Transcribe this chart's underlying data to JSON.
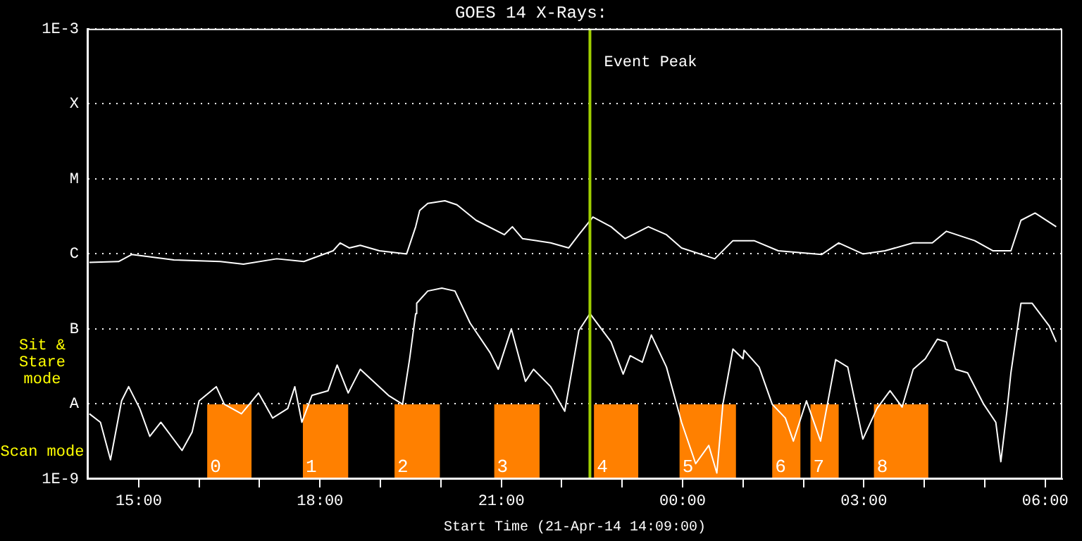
{
  "chart_data": {
    "type": "line",
    "title": "GOES 14 X-Rays:",
    "xlabel": "Start Time (21-Apr-14 14:09:00)",
    "log": "y",
    "grid": "y",
    "legend": false,
    "marker": "none",
    "line_style": "solid",
    "xlim": [
      "--04-21T14:09",
      "--04-22T06:17"
    ],
    "xticks": [
      {
        "value": "--04-21T15:00",
        "label": "15:00"
      },
      {
        "value": "--04-21T16:00",
        "label": null
      },
      {
        "value": "--04-21T17:00",
        "label": null
      },
      {
        "value": "--04-21T18:00",
        "label": "18:00"
      },
      {
        "value": "--04-21T19:00",
        "label": null
      },
      {
        "value": "--04-21T20:00",
        "label": null
      },
      {
        "value": "--04-21T21:00",
        "label": "21:00"
      },
      {
        "value": "--04-21T22:00",
        "label": null
      },
      {
        "value": "--04-21T23:00",
        "label": null
      },
      {
        "value": "--04-22T00:00",
        "label": "00:00"
      },
      {
        "value": "--04-22T01:00",
        "label": null
      },
      {
        "value": "--04-22T02:00",
        "label": null
      },
      {
        "value": "--04-22T03:00",
        "label": "03:00"
      },
      {
        "value": "--04-22T04:00",
        "label": null
      },
      {
        "value": "--04-22T05:00",
        "label": null
      },
      {
        "value": "--04-22T06:00",
        "label": "06:00"
      }
    ],
    "ylim": [
      1e-09,
      0.001
    ],
    "yticks": [
      {
        "value": 1e-09,
        "label": "1E-9"
      },
      {
        "value": 1e-08,
        "label": "A"
      },
      {
        "value": 1e-07,
        "label": "B"
      },
      {
        "value": 1e-06,
        "label": "C"
      },
      {
        "value": 1e-05,
        "label": "M"
      },
      {
        "value": 0.0001,
        "label": "X"
      },
      {
        "value": 0.001,
        "label": "1E-3"
      }
    ],
    "series": [
      {
        "color": "#ffffff",
        "x": [
          "--04-21T14:11",
          "--04-21T14:40",
          "--04-21T14:53",
          "--04-21T15:35",
          "--04-21T16:21",
          "--04-21T16:44",
          "--04-21T17:17",
          "--04-21T17:44",
          "--04-21T18:13",
          "--04-21T18:20",
          "--04-21T18:29",
          "--04-21T18:40",
          "--04-21T18:59",
          "--04-21T19:26",
          "--04-21T19:35",
          "--04-21T19:39",
          "--04-21T19:47",
          "--04-21T20:04",
          "--04-21T20:16",
          "--04-21T20:35",
          "--04-21T21:03",
          "--04-21T21:11",
          "--04-21T21:21",
          "--04-21T21:49",
          "--04-21T22:07",
          "--04-21T22:17",
          "--04-21T22:31",
          "--04-21T22:49",
          "--04-21T23:03",
          "--04-21T23:26",
          "--04-21T23:44",
          "--04-21T23:59",
          "--04-22T00:32",
          "--04-22T00:50",
          "--04-22T00:57",
          "--04-22T01:11",
          "--04-22T01:35",
          "--04-22T02:18",
          "--04-22T02:35",
          "--04-22T02:59",
          "--04-22T03:21",
          "--04-22T03:49",
          "--04-22T04:08",
          "--04-22T04:22",
          "--04-22T04:50",
          "--04-22T05:08",
          "--04-22T05:26",
          "--04-22T05:36",
          "--04-22T05:50",
          "--04-22T06:11"
        ],
        "values": [
          7.7e-07,
          7.9e-07,
          9.8e-07,
          8.3e-07,
          7.9e-07,
          7.3e-07,
          8.6e-07,
          7.9e-07,
          1.1e-06,
          1.4e-06,
          1.2e-06,
          1.3e-06,
          1.1e-06,
          1e-06,
          2.3e-06,
          3.8e-06,
          4.7e-06,
          5.1e-06,
          4.5e-06,
          2.8e-06,
          1.8e-06,
          2.3e-06,
          1.6e-06,
          1.4e-06,
          1.2e-06,
          1.8e-06,
          3.1e-06,
          2.3e-06,
          1.6e-06,
          2.3e-06,
          1.8e-06,
          1.2e-06,
          8.6e-07,
          1.5e-06,
          1.5e-06,
          1.5e-06,
          1.1e-06,
          9.8e-07,
          1.4e-06,
          1e-06,
          1.1e-06,
          1.4e-06,
          1.4e-06,
          2e-06,
          1.5e-06,
          1.1e-06,
          1.1e-06,
          2.8e-06,
          3.5e-06,
          2.3e-06
        ]
      },
      {
        "color": "#ffffff",
        "x": [
          "--04-21T14:11",
          "--04-21T14:22",
          "--04-21T14:32",
          "--04-21T14:43",
          "--04-21T14:50",
          "--04-21T15:01",
          "--04-21T15:11",
          "--04-21T15:22",
          "--04-21T15:43",
          "--04-21T15:53",
          "--04-21T16:00",
          "--04-21T16:17",
          "--04-21T16:25",
          "--04-21T16:42",
          "--04-21T16:59",
          "--04-21T17:13",
          "--04-21T17:28",
          "--04-21T17:35",
          "--04-21T17:42",
          "--04-21T17:52",
          "--04-21T18:08",
          "--04-21T18:17",
          "--04-21T18:28",
          "--04-21T18:40",
          "--04-21T19:08",
          "--04-21T19:22",
          "--04-21T19:29",
          "--04-21T19:35",
          "--04-21T19:36",
          "--04-21T19:47",
          "--04-21T20:01",
          "--04-21T20:14",
          "--04-21T20:29",
          "--04-21T20:49",
          "--04-21T20:57",
          "--04-21T21:10",
          "--04-21T21:24",
          "--04-21T21:32",
          "--04-21T21:49",
          "--04-21T22:03",
          "--04-21T22:17",
          "--04-21T22:28",
          "--04-21T22:49",
          "--04-21T23:01",
          "--04-21T23:08",
          "--04-21T23:20",
          "--04-21T23:29",
          "--04-21T23:44",
          "--04-21T23:59",
          "--04-22T00:13",
          "--04-22T00:26",
          "--04-22T00:34",
          "--04-22T00:40",
          "--04-22T00:50",
          "--04-22T01:00",
          "--04-22T01:01",
          "--04-22T01:16",
          "--04-22T01:29",
          "--04-22T01:42",
          "--04-22T01:50",
          "--04-22T02:03",
          "--04-22T02:17",
          "--04-22T02:32",
          "--04-22T02:44",
          "--04-22T02:59",
          "--04-22T03:13",
          "--04-22T03:26",
          "--04-22T03:38",
          "--04-22T03:49",
          "--04-22T04:01",
          "--04-22T04:13",
          "--04-22T04:22",
          "--04-22T04:31",
          "--04-22T04:43",
          "--04-22T04:59",
          "--04-22T05:11",
          "--04-22T05:16",
          "--04-22T05:22",
          "--04-22T05:26",
          "--04-22T05:36",
          "--04-22T05:47",
          "--04-22T06:04",
          "--04-22T06:11"
        ],
        "values": [
          7.4e-09,
          5.7e-09,
          1.8e-09,
          1.1e-08,
          1.7e-08,
          8.7e-09,
          3.7e-09,
          5.7e-09,
          2.4e-09,
          4.2e-09,
          1.1e-08,
          1.7e-08,
          9.9e-09,
          7.4e-09,
          1.4e-08,
          6.5e-09,
          8.7e-09,
          1.7e-08,
          5.7e-09,
          1.3e-08,
          1.5e-08,
          3.3e-08,
          1.4e-08,
          2.9e-08,
          1.3e-08,
          9.9e-09,
          4e-08,
          1.6e-07,
          2.2e-07,
          3.2e-07,
          3.5e-07,
          3.2e-07,
          1.2e-07,
          4.8e-08,
          2.9e-08,
          1e-07,
          2e-08,
          2.9e-08,
          1.7e-08,
          8e-09,
          9.5e-08,
          1.6e-07,
          6.7e-08,
          2.5e-08,
          4.4e-08,
          3.6e-08,
          8.3e-08,
          3.1e-08,
          5.7e-09,
          1.6e-09,
          2.8e-09,
          1.2e-09,
          9.9e-09,
          5.4e-08,
          4e-08,
          5.2e-08,
          3.1e-08,
          9.9e-09,
          6.5e-09,
          3.2e-09,
          1.1e-08,
          3.2e-09,
          3.9e-08,
          3.1e-08,
          3.4e-09,
          8.7e-09,
          1.5e-08,
          9.1e-09,
          2.9e-08,
          4e-08,
          7.3e-08,
          6.7e-08,
          2.9e-08,
          2.6e-08,
          9.9e-09,
          5.7e-09,
          1.7e-09,
          8e-09,
          2.6e-08,
          2.2e-07,
          2.2e-07,
          1.1e-07,
          6.7e-08
        ]
      }
    ],
    "ref_lines": [
      {
        "axis": "x",
        "value": "--04-21T22:28",
        "label": "Event Peak",
        "color": "#a0d000"
      }
    ],
    "bands": [
      {
        "axis": "x",
        "from": "--04-21T16:08",
        "to": "--04-21T16:52",
        "label": "0",
        "color": "#ff8000"
      },
      {
        "axis": "x",
        "from": "--04-21T17:43",
        "to": "--04-21T18:28",
        "label": "1",
        "color": "#ff8000"
      },
      {
        "axis": "x",
        "from": "--04-21T19:14",
        "to": "--04-21T19:59",
        "label": "2",
        "color": "#ff8000"
      },
      {
        "axis": "x",
        "from": "--04-21T20:53",
        "to": "--04-21T21:38",
        "label": "3",
        "color": "#ff8000"
      },
      {
        "axis": "x",
        "from": "--04-21T22:32",
        "to": "--04-21T23:16",
        "label": "4",
        "color": "#ff8000"
      },
      {
        "axis": "x",
        "from": "--04-21T23:57",
        "to": "--04-22T00:53",
        "label": "5",
        "color": "#ff8000"
      },
      {
        "axis": "x",
        "from": "--04-22T01:29",
        "to": "--04-22T01:57",
        "label": "6",
        "color": "#ff8000"
      },
      {
        "axis": "x",
        "from": "--04-22T02:07",
        "to": "--04-22T02:35",
        "label": "7",
        "color": "#ff8000"
      },
      {
        "axis": "x",
        "from": "--04-22T03:10",
        "to": "--04-22T04:04",
        "label": "8",
        "color": "#ff8000"
      }
    ],
    "annotations": [
      "Sit & Stare mode",
      "Scan mode"
    ]
  }
}
